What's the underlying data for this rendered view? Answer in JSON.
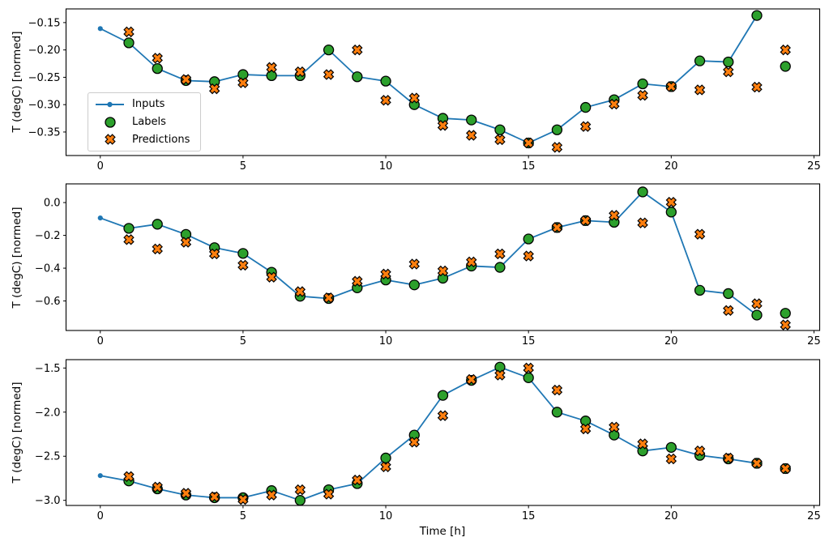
{
  "figure": {
    "xlabel": "Time [h]",
    "ylabel": "T (degC) [normed]",
    "x_ticks": [
      0,
      5,
      10,
      15,
      20,
      25
    ],
    "legend": {
      "position": "upper-left-inside-first-subplot",
      "items": [
        {
          "label": "Inputs",
          "marker": "line-with-dot"
        },
        {
          "label": "Labels",
          "marker": "filled-circle"
        },
        {
          "label": "Predictions",
          "marker": "thick-x"
        }
      ]
    },
    "colors": {
      "inputs": "#1f77b4",
      "labels": "#2ca02c",
      "predictions": "#ff7f0e",
      "marker_edge": "#000000",
      "axis": "#000000",
      "background": "#ffffff"
    }
  },
  "chart_data": [
    {
      "type": "line",
      "subplot": 1,
      "ylabel": "T (degC) [normed]",
      "xlabel": "",
      "xlim": [
        -1.2,
        25.2
      ],
      "ylim": [
        -0.393,
        -0.125
      ],
      "xticks": [
        0,
        5,
        10,
        15,
        20,
        25
      ],
      "yticks": [
        -0.15,
        -0.2,
        -0.25,
        -0.3,
        -0.35
      ],
      "ytick_decimals": 2,
      "grid": false,
      "series": [
        {
          "name": "Inputs",
          "type": "line+dot",
          "x": [
            0,
            1,
            2,
            3,
            4,
            5,
            6,
            7,
            8,
            9,
            10,
            11,
            12,
            13,
            14,
            15,
            16,
            17,
            18,
            19,
            20,
            21,
            22,
            23
          ],
          "y": [
            -0.161,
            -0.187,
            -0.234,
            -0.256,
            -0.258,
            -0.245,
            -0.247,
            -0.247,
            -0.2,
            -0.249,
            -0.257,
            -0.3,
            -0.325,
            -0.328,
            -0.346,
            -0.37,
            -0.346,
            -0.305,
            -0.291,
            -0.262,
            -0.267,
            -0.22,
            -0.222,
            -0.137
          ]
        },
        {
          "name": "Labels",
          "type": "scatter-circle",
          "x": [
            1,
            2,
            3,
            4,
            5,
            6,
            7,
            8,
            9,
            10,
            11,
            12,
            13,
            14,
            15,
            16,
            17,
            18,
            19,
            20,
            21,
            22,
            23,
            24
          ],
          "y": [
            -0.187,
            -0.234,
            -0.256,
            -0.258,
            -0.245,
            -0.247,
            -0.247,
            -0.2,
            -0.249,
            -0.257,
            -0.3,
            -0.325,
            -0.328,
            -0.346,
            -0.37,
            -0.346,
            -0.305,
            -0.291,
            -0.262,
            -0.267,
            -0.22,
            -0.222,
            -0.137,
            -0.23
          ]
        },
        {
          "name": "Predictions",
          "type": "scatter-x",
          "x": [
            1,
            2,
            3,
            4,
            5,
            6,
            7,
            8,
            9,
            10,
            11,
            12,
            13,
            14,
            15,
            16,
            17,
            18,
            19,
            20,
            21,
            22,
            23,
            24
          ],
          "y": [
            -0.167,
            -0.215,
            -0.254,
            -0.271,
            -0.26,
            -0.232,
            -0.24,
            -0.245,
            -0.2,
            -0.292,
            -0.288,
            -0.338,
            -0.356,
            -0.364,
            -0.37,
            -0.378,
            -0.34,
            -0.299,
            -0.283,
            -0.267,
            -0.273,
            -0.24,
            -0.268,
            -0.2
          ]
        }
      ]
    },
    {
      "type": "line",
      "subplot": 2,
      "ylabel": "T (degC) [normed]",
      "xlabel": "",
      "xlim": [
        -1.2,
        25.2
      ],
      "ylim": [
        -0.78,
        0.114
      ],
      "xticks": [
        0,
        5,
        10,
        15,
        20,
        25
      ],
      "yticks": [
        0.0,
        -0.2,
        -0.4,
        -0.6
      ],
      "ytick_decimals": 1,
      "grid": false,
      "series": [
        {
          "name": "Inputs",
          "type": "line+dot",
          "x": [
            0,
            1,
            2,
            3,
            4,
            5,
            6,
            7,
            8,
            9,
            10,
            11,
            12,
            13,
            14,
            15,
            16,
            17,
            18,
            19,
            20,
            21,
            22,
            23
          ],
          "y": [
            -0.094,
            -0.157,
            -0.132,
            -0.194,
            -0.275,
            -0.31,
            -0.425,
            -0.571,
            -0.585,
            -0.52,
            -0.472,
            -0.502,
            -0.461,
            -0.387,
            -0.395,
            -0.222,
            -0.152,
            -0.11,
            -0.12,
            0.065,
            -0.058,
            -0.535,
            -0.555,
            -0.686
          ]
        },
        {
          "name": "Labels",
          "type": "scatter-circle",
          "x": [
            1,
            2,
            3,
            4,
            5,
            6,
            7,
            8,
            9,
            10,
            11,
            12,
            13,
            14,
            15,
            16,
            17,
            18,
            19,
            20,
            21,
            22,
            23,
            24
          ],
          "y": [
            -0.157,
            -0.132,
            -0.194,
            -0.275,
            -0.31,
            -0.425,
            -0.571,
            -0.585,
            -0.52,
            -0.472,
            -0.502,
            -0.461,
            -0.387,
            -0.395,
            -0.222,
            -0.152,
            -0.11,
            -0.12,
            0.065,
            -0.058,
            -0.535,
            -0.555,
            -0.686,
            -0.675
          ]
        },
        {
          "name": "Predictions",
          "type": "scatter-x",
          "x": [
            1,
            2,
            3,
            4,
            5,
            6,
            7,
            8,
            9,
            10,
            11,
            12,
            13,
            14,
            15,
            16,
            17,
            18,
            19,
            20,
            21,
            22,
            23,
            24
          ],
          "y": [
            -0.226,
            -0.283,
            -0.242,
            -0.313,
            -0.382,
            -0.455,
            -0.543,
            -0.581,
            -0.48,
            -0.436,
            -0.375,
            -0.417,
            -0.362,
            -0.313,
            -0.326,
            -0.152,
            -0.11,
            -0.078,
            -0.124,
            0.002,
            -0.193,
            -0.658,
            -0.617,
            -0.746
          ]
        }
      ]
    },
    {
      "type": "line",
      "subplot": 3,
      "ylabel": "T (degC) [normed]",
      "xlabel": "Time [h]",
      "xlim": [
        -1.2,
        25.2
      ],
      "ylim": [
        -3.058,
        -1.405
      ],
      "xticks": [
        0,
        5,
        10,
        15,
        20,
        25
      ],
      "yticks": [
        -1.5,
        -2.0,
        -2.5,
        -3.0
      ],
      "ytick_decimals": 1,
      "grid": false,
      "series": [
        {
          "name": "Inputs",
          "type": "line+dot",
          "x": [
            0,
            1,
            2,
            3,
            4,
            5,
            6,
            7,
            8,
            9,
            10,
            11,
            12,
            13,
            14,
            15,
            16,
            17,
            18,
            19,
            20,
            21,
            22,
            23
          ],
          "y": [
            -2.72,
            -2.78,
            -2.87,
            -2.94,
            -2.97,
            -2.97,
            -2.89,
            -3.0,
            -2.88,
            -2.81,
            -2.52,
            -2.26,
            -1.81,
            -1.64,
            -1.49,
            -1.61,
            -2.0,
            -2.1,
            -2.26,
            -2.44,
            -2.4,
            -2.49,
            -2.53,
            -2.58
          ]
        },
        {
          "name": "Labels",
          "type": "scatter-circle",
          "x": [
            1,
            2,
            3,
            4,
            5,
            6,
            7,
            8,
            9,
            10,
            11,
            12,
            13,
            14,
            15,
            16,
            17,
            18,
            19,
            20,
            21,
            22,
            23,
            24
          ],
          "y": [
            -2.78,
            -2.87,
            -2.94,
            -2.97,
            -2.97,
            -2.89,
            -3.0,
            -2.88,
            -2.81,
            -2.52,
            -2.26,
            -1.81,
            -1.64,
            -1.49,
            -1.61,
            -2.0,
            -2.1,
            -2.26,
            -2.44,
            -2.4,
            -2.49,
            -2.53,
            -2.58,
            -2.64
          ]
        },
        {
          "name": "Predictions",
          "type": "scatter-x",
          "x": [
            1,
            2,
            3,
            4,
            5,
            6,
            7,
            8,
            9,
            10,
            11,
            12,
            13,
            14,
            15,
            16,
            17,
            18,
            19,
            20,
            21,
            22,
            23,
            24
          ],
          "y": [
            -2.73,
            -2.85,
            -2.92,
            -2.96,
            -2.99,
            -2.94,
            -2.88,
            -2.93,
            -2.77,
            -2.62,
            -2.34,
            -2.04,
            -1.63,
            -1.58,
            -1.5,
            -1.75,
            -2.19,
            -2.17,
            -2.36,
            -2.53,
            -2.44,
            -2.52,
            -2.58,
            -2.64
          ]
        }
      ]
    }
  ]
}
